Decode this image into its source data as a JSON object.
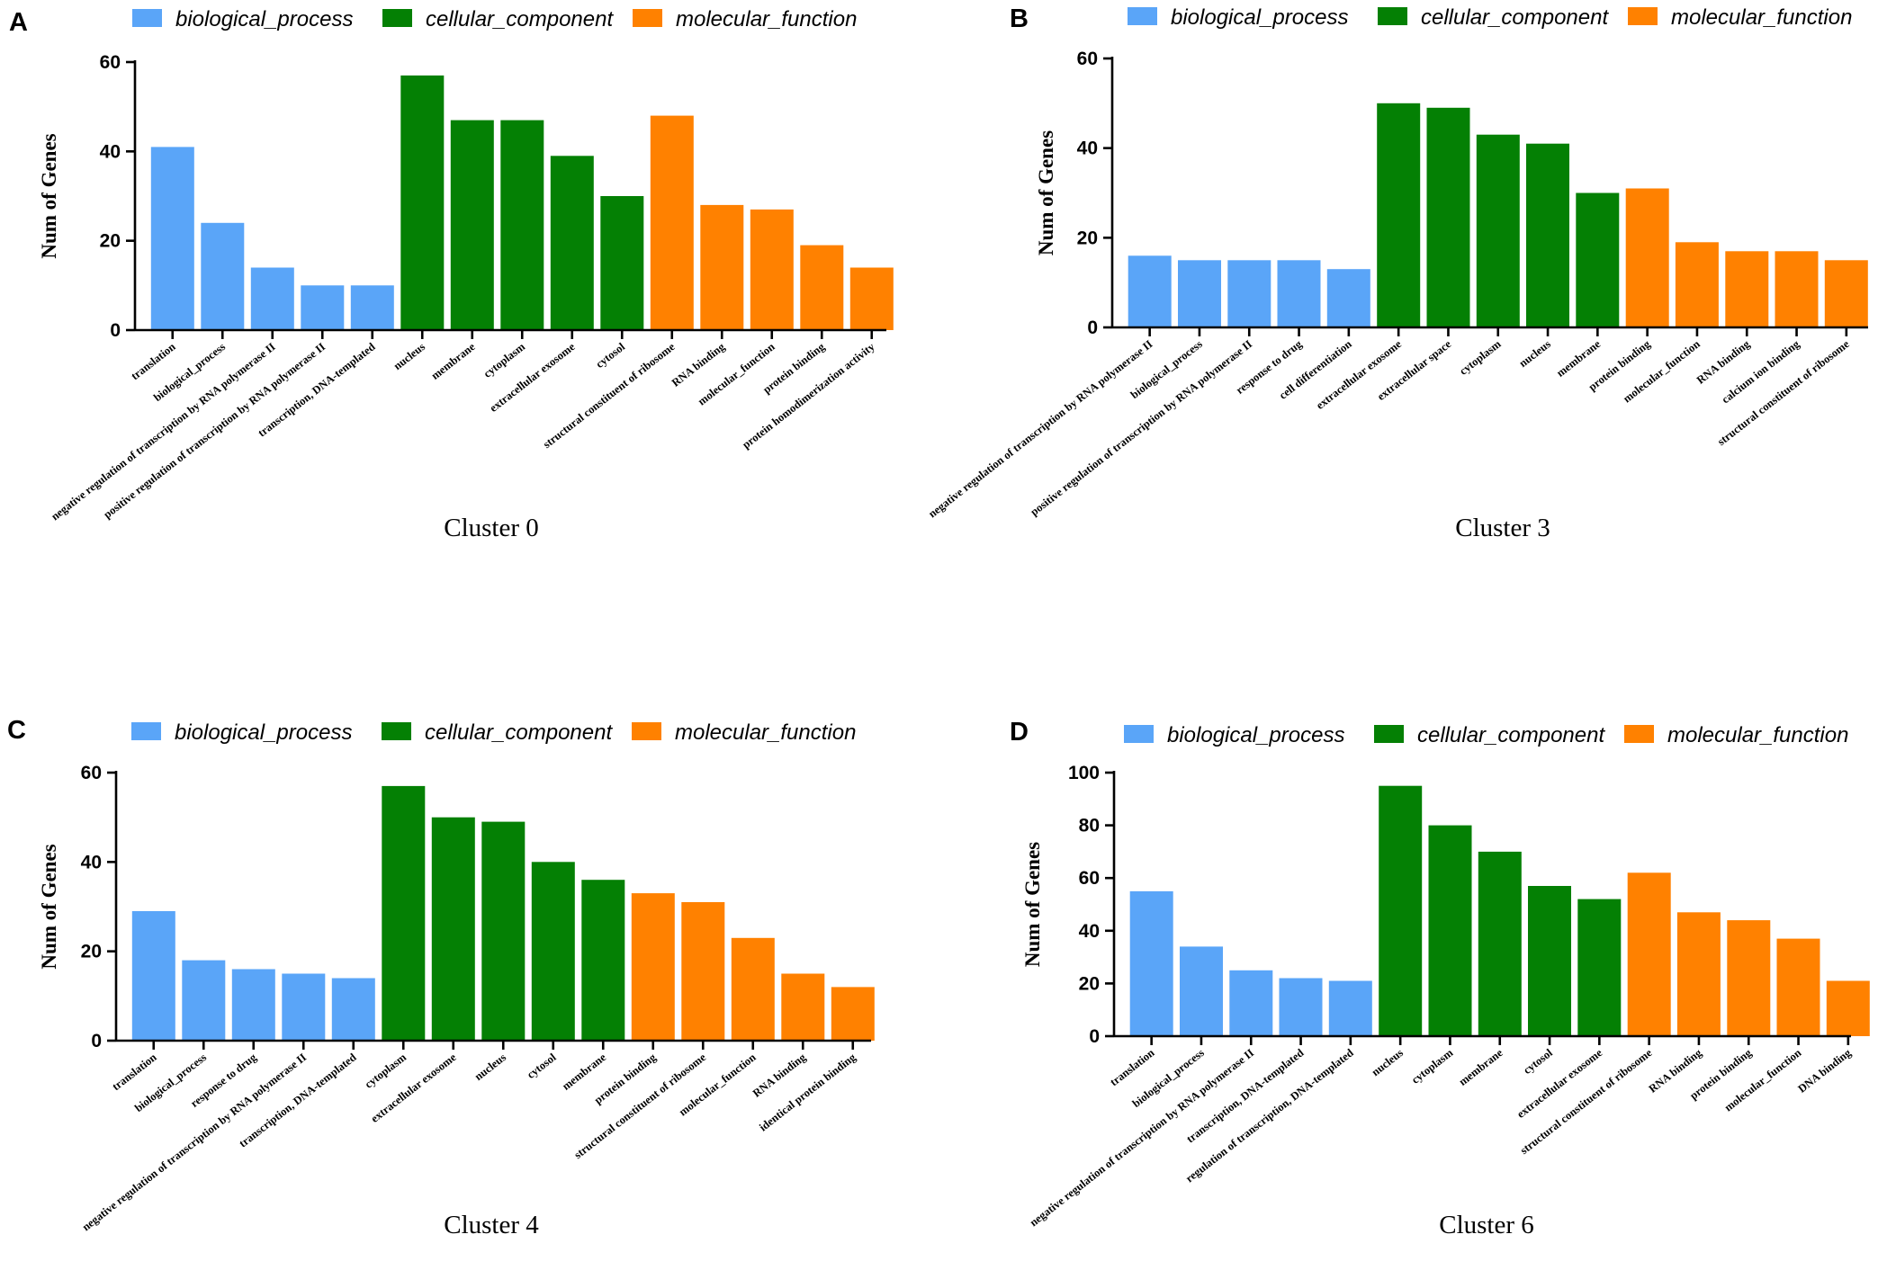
{
  "colors": {
    "biological_process": "#5aa5f8",
    "cellular_component": "#048004",
    "molecular_function": "#ff8100"
  },
  "legend_labels": [
    "biological_process",
    "cellular_component",
    "molecular_function"
  ],
  "chart_data": [
    {
      "panel": "A",
      "type": "bar",
      "title": "Cluster 0",
      "ylabel": "Num of Genes",
      "ylim": [
        0,
        60
      ],
      "yticks": [
        0,
        20,
        40,
        60
      ],
      "categories": [
        "translation",
        "biological_process",
        "negative regulation of transcription by RNA polymerase II",
        "positive regulation of transcription by RNA polymerase II",
        "transcription, DNA-templated",
        "nucleus",
        "membrane",
        "cytoplasm",
        "extracellular exosome",
        "cytosol",
        "structural constituent of ribosome",
        "RNA binding",
        "molecular_function",
        "protein binding",
        "protein homodimerization activity"
      ],
      "values": [
        41,
        24,
        14,
        10,
        10,
        57,
        47,
        47,
        39,
        30,
        48,
        28,
        27,
        19,
        14
      ],
      "groups": [
        "biological_process",
        "biological_process",
        "biological_process",
        "biological_process",
        "biological_process",
        "cellular_component",
        "cellular_component",
        "cellular_component",
        "cellular_component",
        "cellular_component",
        "molecular_function",
        "molecular_function",
        "molecular_function",
        "molecular_function",
        "molecular_function"
      ]
    },
    {
      "panel": "B",
      "type": "bar",
      "title": "Cluster 3",
      "ylabel": "Num of Genes",
      "ylim": [
        0,
        60
      ],
      "yticks": [
        0,
        20,
        40,
        60
      ],
      "categories": [
        "negative regulation of transcription by RNA polymerase II",
        "biological_process",
        "positive regulation of transcription by RNA polymerase II",
        "response to drug",
        "cell differentiation",
        "extracellular exosome",
        "extracellular space",
        "cytoplasm",
        "nucleus",
        "membrane",
        "protein binding",
        "molecular_function",
        "RNA binding",
        "calcium ion binding",
        "structural constituent of ribosome"
      ],
      "values": [
        16,
        15,
        15,
        15,
        13,
        50,
        49,
        43,
        41,
        30,
        31,
        19,
        17,
        17,
        15
      ],
      "groups": [
        "biological_process",
        "biological_process",
        "biological_process",
        "biological_process",
        "biological_process",
        "cellular_component",
        "cellular_component",
        "cellular_component",
        "cellular_component",
        "cellular_component",
        "molecular_function",
        "molecular_function",
        "molecular_function",
        "molecular_function",
        "molecular_function"
      ]
    },
    {
      "panel": "C",
      "type": "bar",
      "title": "Cluster 4",
      "ylabel": "Num of Genes",
      "ylim": [
        0,
        60
      ],
      "yticks": [
        0,
        20,
        40,
        60
      ],
      "categories": [
        "translation",
        "biological_process",
        "response to drug",
        "negative regulation of transcription by RNA polymerase II",
        "transcription, DNA-templated",
        "cytoplasm",
        "extracellular exosome",
        "nucleus",
        "cytosol",
        "membrane",
        "protein binding",
        "structural constituent of ribosome",
        "molecular_function",
        "RNA binding",
        "identical protein binding"
      ],
      "values": [
        29,
        18,
        16,
        15,
        14,
        57,
        50,
        49,
        40,
        36,
        33,
        31,
        23,
        15,
        12
      ],
      "groups": [
        "biological_process",
        "biological_process",
        "biological_process",
        "biological_process",
        "biological_process",
        "cellular_component",
        "cellular_component",
        "cellular_component",
        "cellular_component",
        "cellular_component",
        "molecular_function",
        "molecular_function",
        "molecular_function",
        "molecular_function",
        "molecular_function"
      ]
    },
    {
      "panel": "D",
      "type": "bar",
      "title": "Cluster 6",
      "ylabel": "Num of Genes",
      "ylim": [
        0,
        100
      ],
      "yticks": [
        0,
        20,
        40,
        60,
        80,
        100
      ],
      "categories": [
        "translation",
        "biological_process",
        "negative regulation of transcription by RNA polymerase II",
        "transcription, DNA-templated",
        "regulation of transcription, DNA-templated",
        "nucleus",
        "cytoplasm",
        "membrane",
        "cytosol",
        "extracellular exosome",
        "structural constituent of ribosome",
        "RNA binding",
        "protein binding",
        "molecular_function",
        "DNA binding"
      ],
      "values": [
        55,
        34,
        25,
        22,
        21,
        95,
        80,
        70,
        57,
        52,
        62,
        47,
        44,
        37,
        21
      ],
      "groups": [
        "biological_process",
        "biological_process",
        "biological_process",
        "biological_process",
        "biological_process",
        "cellular_component",
        "cellular_component",
        "cellular_component",
        "cellular_component",
        "cellular_component",
        "molecular_function",
        "molecular_function",
        "molecular_function",
        "molecular_function",
        "molecular_function"
      ]
    }
  ]
}
